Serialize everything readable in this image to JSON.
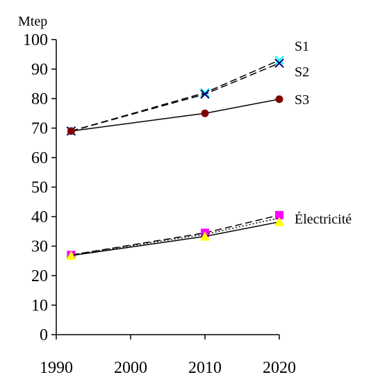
{
  "chart_data": {
    "type": "line",
    "ylabel": "Mtep",
    "xlim": [
      1990,
      2020
    ],
    "ylim": [
      0,
      100
    ],
    "x_ticks": [
      1990,
      2000,
      2010,
      2020
    ],
    "y_ticks": [
      0,
      10,
      20,
      30,
      40,
      50,
      60,
      70,
      80,
      90,
      100
    ],
    "x_tick_labels": [
      "1990",
      "2000",
      "2010",
      "2020"
    ],
    "y_tick_labels": [
      "0",
      "10",
      "20",
      "30",
      "40",
      "50",
      "60",
      "70",
      "80",
      "90",
      "100"
    ],
    "grid": false,
    "series": [
      {
        "name": "S1",
        "x": [
          1992,
          2010,
          2020
        ],
        "values": [
          69,
          82,
          93
        ],
        "color": "#00ffff",
        "marker": "x",
        "line": "dashed"
      },
      {
        "name": "S2",
        "x": [
          1992,
          2010,
          2020
        ],
        "values": [
          69,
          81.5,
          92
        ],
        "color": "#000080",
        "marker": "x",
        "line": "dashed"
      },
      {
        "name": "S3",
        "x": [
          1992,
          2010,
          2020
        ],
        "values": [
          69,
          75,
          79.8
        ],
        "color": "#800000",
        "marker": "circle",
        "line": "solid"
      },
      {
        "name": "Électricité",
        "x": [
          1992,
          2010,
          2020
        ],
        "values": [
          27,
          34.5,
          40.5
        ],
        "color": "#ff00ff",
        "marker": "square",
        "line": "dashed"
      },
      {
        "name": "",
        "x": [
          1992,
          2010,
          2020
        ],
        "values": [
          27,
          34,
          39.5
        ],
        "color": "#000000",
        "marker": "none",
        "line": "dotted"
      },
      {
        "name": "",
        "x": [
          1992,
          2010,
          2020
        ],
        "values": [
          26.8,
          33.3,
          38.2
        ],
        "color": "#ffff00",
        "marker": "triangle",
        "line": "solid"
      }
    ]
  }
}
